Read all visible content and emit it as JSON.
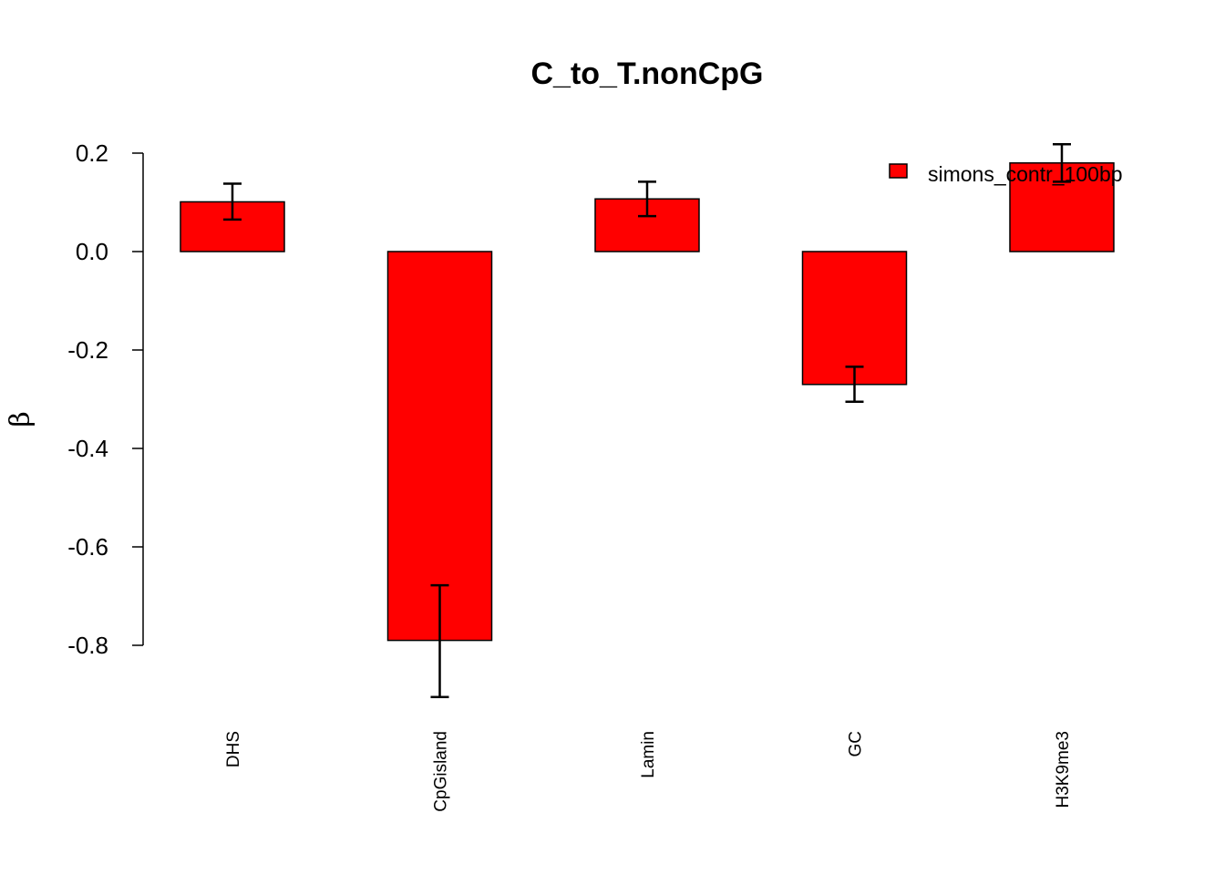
{
  "chart_data": {
    "type": "bar",
    "title": "C_to_T.nonCpG",
    "xlabel": "",
    "ylabel": "β",
    "categories": [
      "DHS",
      "CpGisland",
      "Lamin",
      "GC",
      "H3K9me3"
    ],
    "series": [
      {
        "name": "simons_contr_100bp",
        "color": "#ff0000",
        "values": [
          0.101,
          -0.79,
          0.107,
          -0.27,
          0.18
        ],
        "error_low": [
          0.065,
          -0.905,
          0.072,
          -0.305,
          0.142
        ],
        "error_high": [
          0.138,
          -0.678,
          0.142,
          -0.234,
          0.218
        ]
      }
    ],
    "yticks": [
      0.2,
      0.0,
      -0.2,
      -0.4,
      -0.6,
      -0.8
    ],
    "ytick_labels": [
      "0.2",
      "0.0",
      "-0.2",
      "-0.4",
      "-0.6",
      "-0.8"
    ],
    "ylim": [
      -0.95,
      0.25
    ],
    "grid": false,
    "legend_position": "top-right"
  }
}
